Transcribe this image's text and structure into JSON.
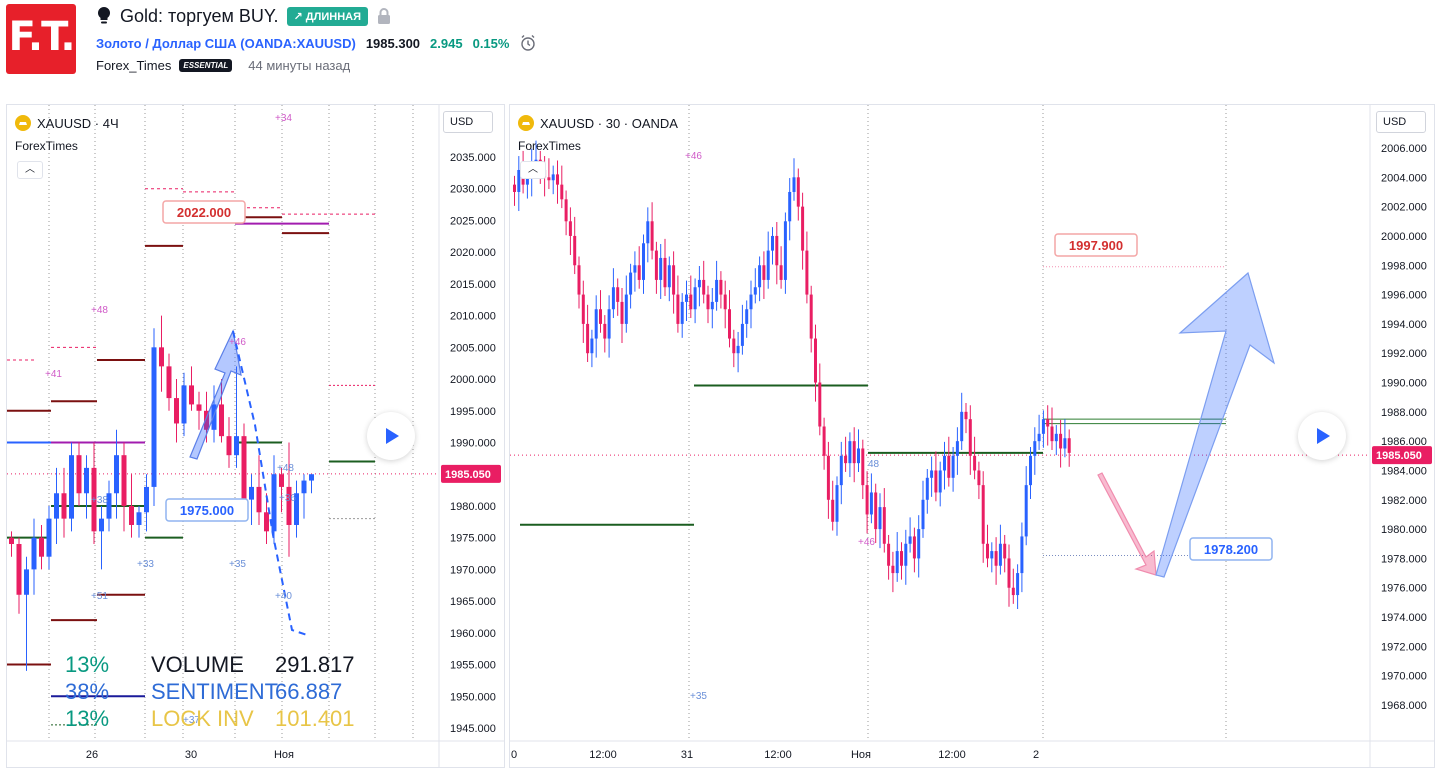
{
  "header": {
    "logo_text": "F.T.",
    "title": "Gold: торгуем BUY.",
    "direction_badge": "↗ ДЛИННАЯ",
    "symbol_name": "Золото / Доллар США",
    "symbol_open": " (",
    "symbol_ticker": "OANDA:XAUUSD",
    "symbol_close": ")",
    "last_price": "1985.300",
    "change": "2.945",
    "change_pct": "0.15%",
    "author": "Forex_Times",
    "author_badge": "ESSENTIAL",
    "posted": "44 минуты назад"
  },
  "left_chart": {
    "legend": "XAUUSD · 4Ч",
    "sub": "ForexTimes",
    "currency": "USD",
    "price_ticks": [
      "2035.000",
      "2030.000",
      "2025.000",
      "2020.000",
      "2015.000",
      "2010.000",
      "2005.000",
      "2000.000",
      "1995.000",
      "1990.000",
      "1985.000",
      "1980.000",
      "1975.000",
      "1970.000",
      "1965.000",
      "1960.000",
      "1955.000",
      "1950.000",
      "1945.000"
    ],
    "current_price": "1985.050",
    "time_labels": [
      "26",
      "30",
      "Ноя"
    ],
    "target_label": "2022.000",
    "stop_label": "1975.000",
    "marks": [
      "+34",
      "+48",
      "+46",
      "+41",
      "+38",
      "+48",
      "+33",
      "+35",
      "+51",
      "+40",
      "+37",
      "+36"
    ],
    "stats": [
      {
        "pct": "13%",
        "label": "VOLUME",
        "value": "291.817"
      },
      {
        "pct": "38%",
        "label": "SENTIMENT",
        "value": "66.887"
      },
      {
        "pct": "13%",
        "label": "LOCK INV",
        "value": "101.401"
      }
    ]
  },
  "right_chart": {
    "legend": "XAUUSD · 30 · OANDA",
    "sub": "ForexTimes",
    "currency": "USD",
    "price_ticks": [
      "2006.000",
      "2004.000",
      "2002.000",
      "2000.000",
      "1998.000",
      "1996.000",
      "1994.000",
      "1992.000",
      "1990.000",
      "1988.000",
      "1986.000",
      "1984.000",
      "1982.000",
      "1980.000",
      "1978.000",
      "1976.000",
      "1974.000",
      "1972.000",
      "1970.000",
      "1968.000"
    ],
    "current_price": "1985.050",
    "time_labels": [
      "0",
      "12:00",
      "31",
      "12:00",
      "Ноя",
      "12:00",
      "2"
    ],
    "target_label": "1997.900",
    "entry_label": "1978.200",
    "marks": [
      "+46",
      "48",
      "+46",
      "+35"
    ]
  },
  "colors": {
    "bull": "#2962ff",
    "bear": "#e91e63",
    "up_text": "#089981",
    "badge": "#22ab94",
    "logo": "#e7202a"
  },
  "chart_data": [
    {
      "type": "candlestick",
      "title": "XAUUSD · 4Ч",
      "ylim": [
        1943,
        2038
      ],
      "x_ticks": [
        "26",
        "30",
        "Ноя"
      ],
      "last": 1985.05,
      "annotations": [
        {
          "text": "2022.000",
          "y": 2022.0
        },
        {
          "text": "1975.000",
          "y": 1975.0
        }
      ],
      "candles": [
        [
          1975,
          1976,
          1972,
          1974
        ],
        [
          1974,
          1975,
          1963,
          1966
        ],
        [
          1966,
          1972,
          1954,
          1970
        ],
        [
          1970,
          1978,
          1966,
          1975
        ],
        [
          1975,
          1977,
          1970,
          1972
        ],
        [
          1972,
          1980,
          1970,
          1978
        ],
        [
          1978,
          1986,
          1974,
          1982
        ],
        [
          1982,
          1986,
          1975,
          1978
        ],
        [
          1978,
          1990,
          1976,
          1988
        ],
        [
          1988,
          1990,
          1980,
          1982
        ],
        [
          1982,
          1988,
          1978,
          1986
        ],
        [
          1986,
          1990,
          1974,
          1976
        ],
        [
          1976,
          1980,
          1970,
          1978
        ],
        [
          1978,
          1984,
          1976,
          1982
        ],
        [
          1982,
          1992,
          1978,
          1988
        ],
        [
          1988,
          1990,
          1976,
          1980
        ],
        [
          1980,
          1985,
          1975,
          1977
        ],
        [
          1977,
          1980,
          1975,
          1979
        ],
        [
          1979,
          1985,
          1976,
          1983
        ],
        [
          1983,
          2008,
          1980,
          2005
        ],
        [
          2005,
          2010,
          1998,
          2002
        ],
        [
          2002,
          2004,
          1995,
          1997
        ],
        [
          1997,
          2000,
          1990,
          1993
        ],
        [
          1993,
          2001,
          1991,
          1999
        ],
        [
          1999,
          2002,
          1995,
          1996
        ],
        [
          1996,
          1998,
          1992,
          1995
        ],
        [
          1995,
          1998,
          1990,
          1992
        ],
        [
          1992,
          1999,
          1990,
          1996
        ],
        [
          1996,
          2000,
          1990,
          1991
        ],
        [
          1991,
          1994,
          1986,
          1988
        ],
        [
          1988,
          2002,
          1986,
          1991
        ],
        [
          1991,
          1993,
          1978,
          1981
        ],
        [
          1981,
          1985,
          1977,
          1983
        ],
        [
          1983,
          1988,
          1977,
          1979
        ],
        [
          1979,
          1982,
          1974,
          1976
        ],
        [
          1976,
          1988,
          1974,
          1985
        ],
        [
          1985,
          1986,
          1979,
          1983
        ],
        [
          1983,
          1990,
          1972,
          1977
        ],
        [
          1977,
          1984,
          1975,
          1982
        ],
        [
          1982,
          1985,
          1978,
          1984
        ],
        [
          1984,
          1985,
          1982,
          1985
        ]
      ]
    },
    {
      "type": "candlestick",
      "title": "XAUUSD · 30 · OANDA",
      "ylim": [
        1967.4,
        2007.2
      ],
      "x_ticks": [
        "0",
        "12:00",
        "31",
        "12:00",
        "Ноя",
        "12:00",
        "2"
      ],
      "last": 1985.05,
      "annotations": [
        {
          "text": "1997.900",
          "y": 1997.9
        },
        {
          "text": "1978.200",
          "y": 1978.2
        }
      ],
      "closes": [
        2003,
        2004.5,
        2003.5,
        2004,
        2005,
        2005.2,
        2004.5,
        2004,
        2003.8,
        2004.2,
        2003.5,
        2002.5,
        2001,
        2000,
        1998,
        1996,
        1994,
        1992,
        1993,
        1995,
        1994,
        1993,
        1995,
        1996.5,
        1995.5,
        1994,
        1996,
        1997.5,
        1998,
        1997,
        1999.5,
        2001,
        1999,
        1997,
        1998.5,
        1996.5,
        1998,
        1996,
        1994,
        1995.5,
        1996,
        1995,
        1996.5,
        1997,
        1996,
        1995,
        1995.5,
        1997,
        1996,
        1995,
        1993,
        1992,
        1992.5,
        1994,
        1995,
        1996,
        1996.5,
        1998,
        1997,
        1999,
        2000,
        1998,
        1997,
        2001,
        2003,
        2004,
        2002,
        1999,
        1996,
        1993,
        1990,
        1987,
        1985,
        1982,
        1980.5,
        1983,
        1985,
        1984.5,
        1986,
        1984.5,
        1985.5,
        1983,
        1981,
        1982.5,
        1980,
        1981.5,
        1979,
        1977.5,
        1977,
        1978.5,
        1977.5,
        1979,
        1979.5,
        1978,
        1980,
        1982,
        1983.5,
        1984,
        1982.5,
        1984,
        1985,
        1983.5,
        1985,
        1986,
        1988,
        1987.5,
        1985,
        1984,
        1983,
        1979,
        1978,
        1978.5,
        1977.5,
        1979,
        1978,
        1976,
        1975.5,
        1977,
        1979.5,
        1983,
        1985,
        1986,
        1986.5,
        1987.5,
        1987,
        1986,
        1986.5,
        1985.5,
        1986.2,
        1985.2
      ]
    }
  ]
}
